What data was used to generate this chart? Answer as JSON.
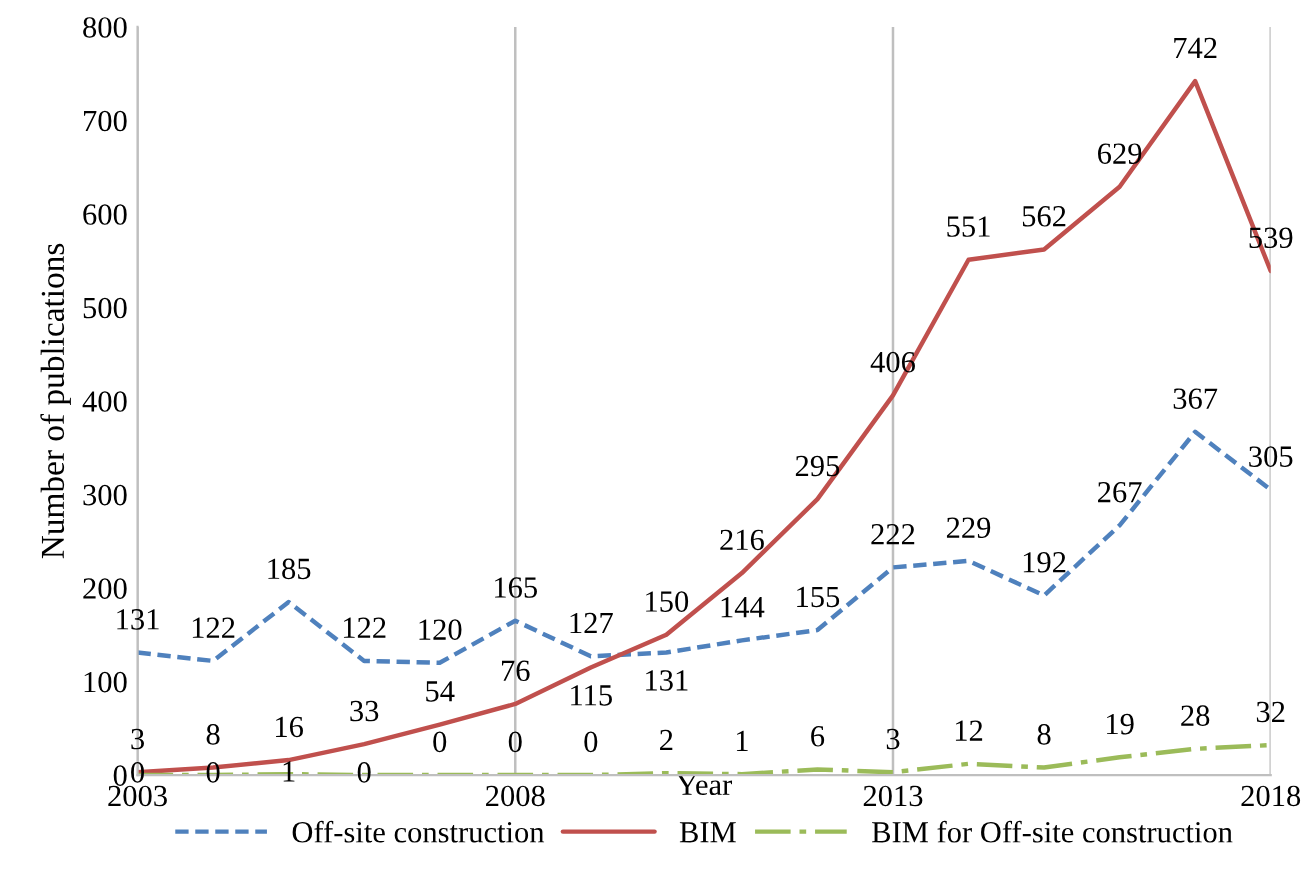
{
  "chart_data": {
    "type": "line",
    "xlabel": "Year",
    "ylabel": "Number of publications",
    "x": [
      2003,
      2004,
      2005,
      2006,
      2007,
      2008,
      2009,
      2010,
      2011,
      2012,
      2013,
      2014,
      2015,
      2016,
      2017,
      2018
    ],
    "series": [
      {
        "name": "Off-site construction",
        "color": "#4f81bd",
        "line_style": "dashed",
        "values": [
          131,
          122,
          185,
          122,
          120,
          165,
          127,
          131,
          144,
          155,
          222,
          229,
          192,
          267,
          367,
          305
        ]
      },
      {
        "name": "BIM",
        "color": "#c0504d",
        "line_style": "solid",
        "values": [
          3,
          8,
          16,
          33,
          54,
          76,
          115,
          150,
          216,
          295,
          406,
          551,
          562,
          629,
          742,
          539
        ]
      },
      {
        "name": "BIM for Off-site construction",
        "color": "#9bbb59",
        "line_style": "dashdot",
        "values": [
          0,
          0,
          1,
          0,
          0,
          0,
          0,
          2,
          1,
          6,
          3,
          12,
          8,
          19,
          28,
          32
        ]
      }
    ],
    "xlim": [
      2003,
      2018
    ],
    "xticks": [
      2003,
      2008,
      2013,
      2018
    ],
    "ylim": [
      0,
      800
    ],
    "yticks": [
      0,
      100,
      200,
      300,
      400,
      500,
      600,
      700,
      800
    ],
    "grid": "x",
    "legend": "bottom",
    "marker": "none",
    "data_labels": true
  }
}
